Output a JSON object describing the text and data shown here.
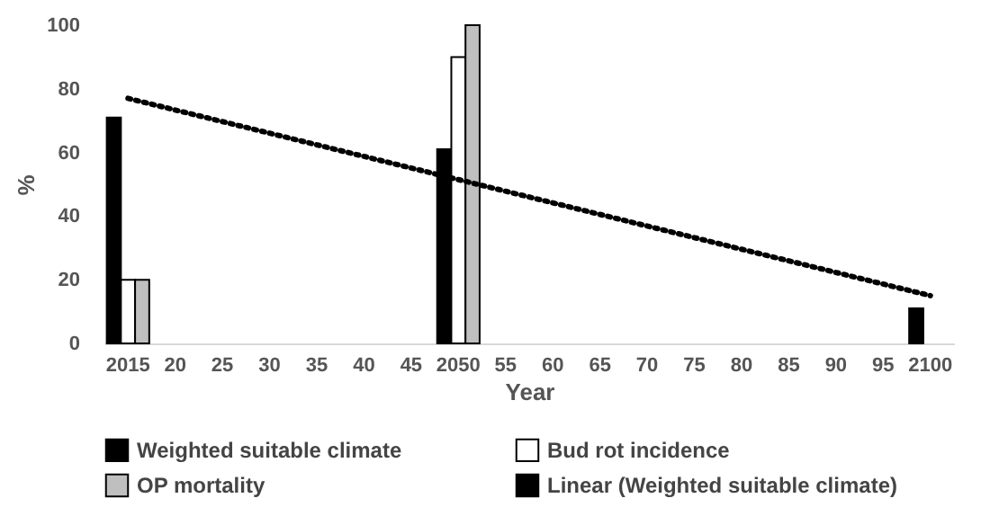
{
  "chart_data": {
    "type": "bar",
    "xlabel": "Year",
    "ylabel": "%",
    "categories": [
      "2015",
      "20",
      "25",
      "30",
      "35",
      "40",
      "45",
      "2050",
      "55",
      "60",
      "65",
      "70",
      "75",
      "80",
      "85",
      "90",
      "95",
      "2100"
    ],
    "series": [
      {
        "name": "Weighted suitable climate",
        "color": "#000000",
        "values": [
          71,
          null,
          null,
          null,
          null,
          null,
          null,
          61,
          null,
          null,
          null,
          null,
          null,
          null,
          null,
          null,
          null,
          11
        ]
      },
      {
        "name": "Bud rot incidence",
        "color": "#ffffff",
        "values": [
          20,
          null,
          null,
          null,
          null,
          null,
          null,
          90,
          null,
          null,
          null,
          null,
          null,
          null,
          null,
          null,
          null,
          null
        ]
      },
      {
        "name": "OP mortality",
        "color": "#bfbfbf",
        "values": [
          20,
          null,
          null,
          null,
          null,
          null,
          null,
          100,
          null,
          null,
          null,
          null,
          null,
          null,
          null,
          null,
          null,
          null
        ]
      },
      {
        "name": "Linear (Weighted suitable climate)",
        "type": "line",
        "color": "#000000",
        "values": [
          77,
          null,
          null,
          null,
          null,
          null,
          null,
          null,
          null,
          null,
          null,
          null,
          null,
          null,
          null,
          null,
          null,
          15
        ],
        "line_style": "dotted",
        "marker": "none"
      }
    ],
    "ylim": [
      0,
      100
    ],
    "yticks": [
      0,
      20,
      40,
      60,
      80,
      100
    ],
    "legend": "bottom"
  }
}
